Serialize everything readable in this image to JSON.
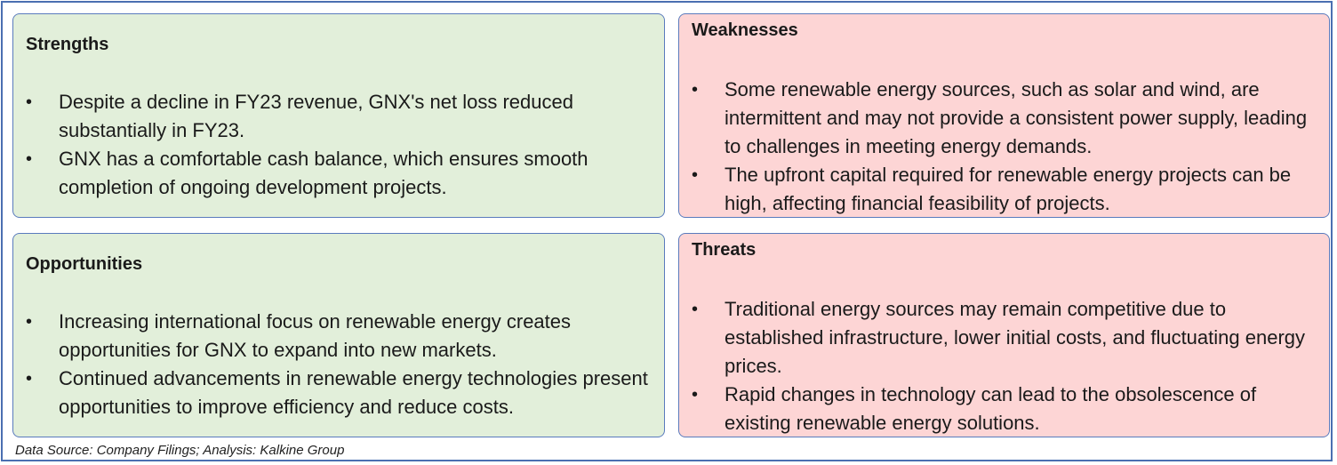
{
  "strengths": {
    "title": "Strengths",
    "items": [
      "Despite a decline in FY23 revenue, GNX's net loss reduced substantially in FY23.",
      "GNX has a comfortable cash balance, which ensures smooth completion of ongoing development projects."
    ]
  },
  "weaknesses": {
    "title": "Weaknesses",
    "items": [
      "Some renewable energy sources, such as solar and wind, are intermittent and may not provide a consistent power supply, leading to challenges in meeting energy demands.",
      "The upfront capital required for renewable energy projects can be high, affecting financial feasibility of projects."
    ]
  },
  "opportunities": {
    "title": "Opportunities",
    "items": [
      "Increasing international focus on renewable energy creates opportunities for GNX to expand into new markets.",
      "Continued advancements in renewable energy technologies present opportunities to improve efficiency and reduce costs."
    ]
  },
  "threats": {
    "title": "Threats",
    "items": [
      "Traditional energy sources may remain competitive due to established infrastructure, lower initial costs, and fluctuating energy prices.",
      "Rapid changes in technology can lead to the obsolescence of existing renewable energy solutions."
    ]
  },
  "bullet_symbol": "•",
  "colors": {
    "green_box": "#e2efda",
    "pink_box": "#fdd5d5",
    "border": "#5a7bbd"
  },
  "footer": {
    "source": "Data Source: Company Filings; Analysis: Kalkine Group"
  }
}
